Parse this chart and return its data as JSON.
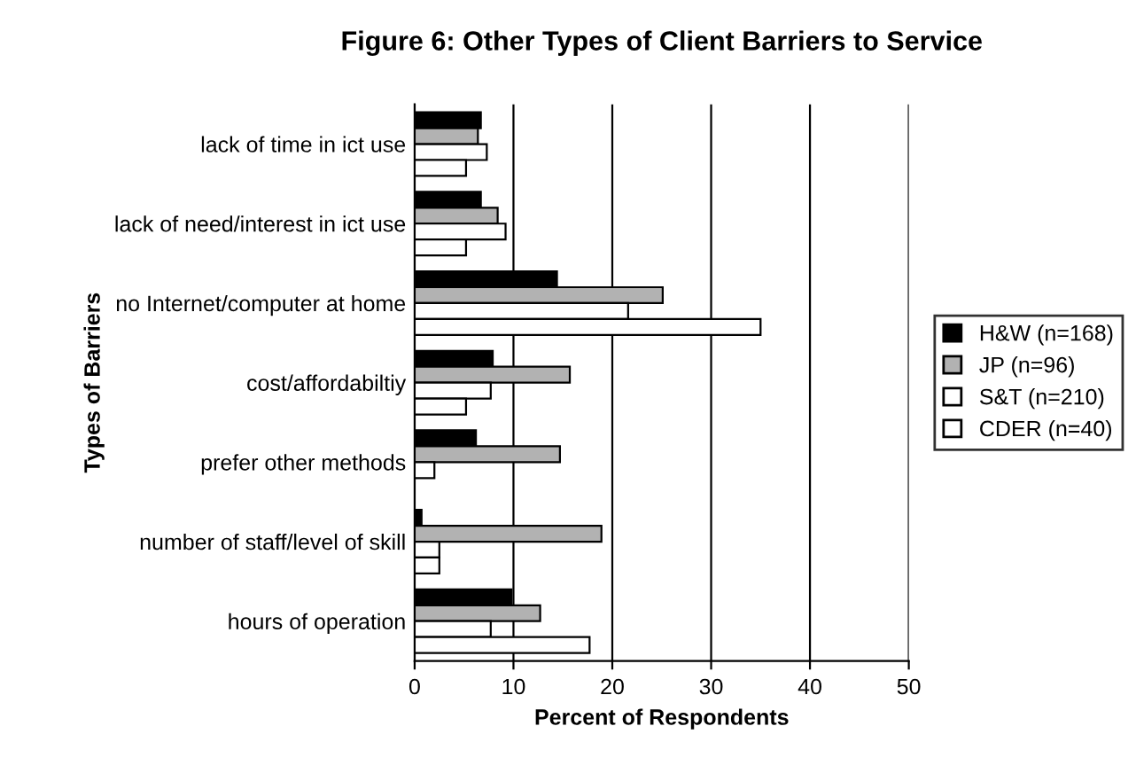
{
  "chart_data": {
    "type": "bar",
    "orientation": "horizontal",
    "title": "Figure 6: Other Types of Client Barriers to Service",
    "xlabel": "Percent of Respondents",
    "ylabel": "Types of Barriers",
    "categories": [
      "lack of time in ict use",
      "lack of need/interest in ict use",
      "no Internet/computer at home",
      "cost/affordabiltiy",
      "prefer other methods",
      "number of staff/level of skill",
      "hours of operation"
    ],
    "series": [
      {
        "name": "H&W (n=168)",
        "color": "#000000",
        "values": [
          6.7,
          6.7,
          14.4,
          7.9,
          6.2,
          0.7,
          9.8
        ]
      },
      {
        "name": "JP (n=96)",
        "color": "#b2b2b2",
        "values": [
          6.4,
          8.4,
          25.1,
          15.7,
          14.7,
          18.9,
          12.7
        ]
      },
      {
        "name": "S&T (n=210)",
        "color": "#ffffff",
        "values": [
          7.3,
          9.2,
          21.6,
          7.7,
          2.0,
          2.5,
          7.7
        ]
      },
      {
        "name": "CDER (n=40)",
        "color": "#ffffff",
        "values": [
          5.2,
          5.2,
          35.0,
          5.2,
          null,
          2.5,
          17.7
        ]
      }
    ],
    "xlim": [
      0,
      50
    ],
    "xticks": [
      0,
      10,
      20,
      30,
      40,
      50
    ],
    "grid": "x",
    "legend": "right"
  }
}
